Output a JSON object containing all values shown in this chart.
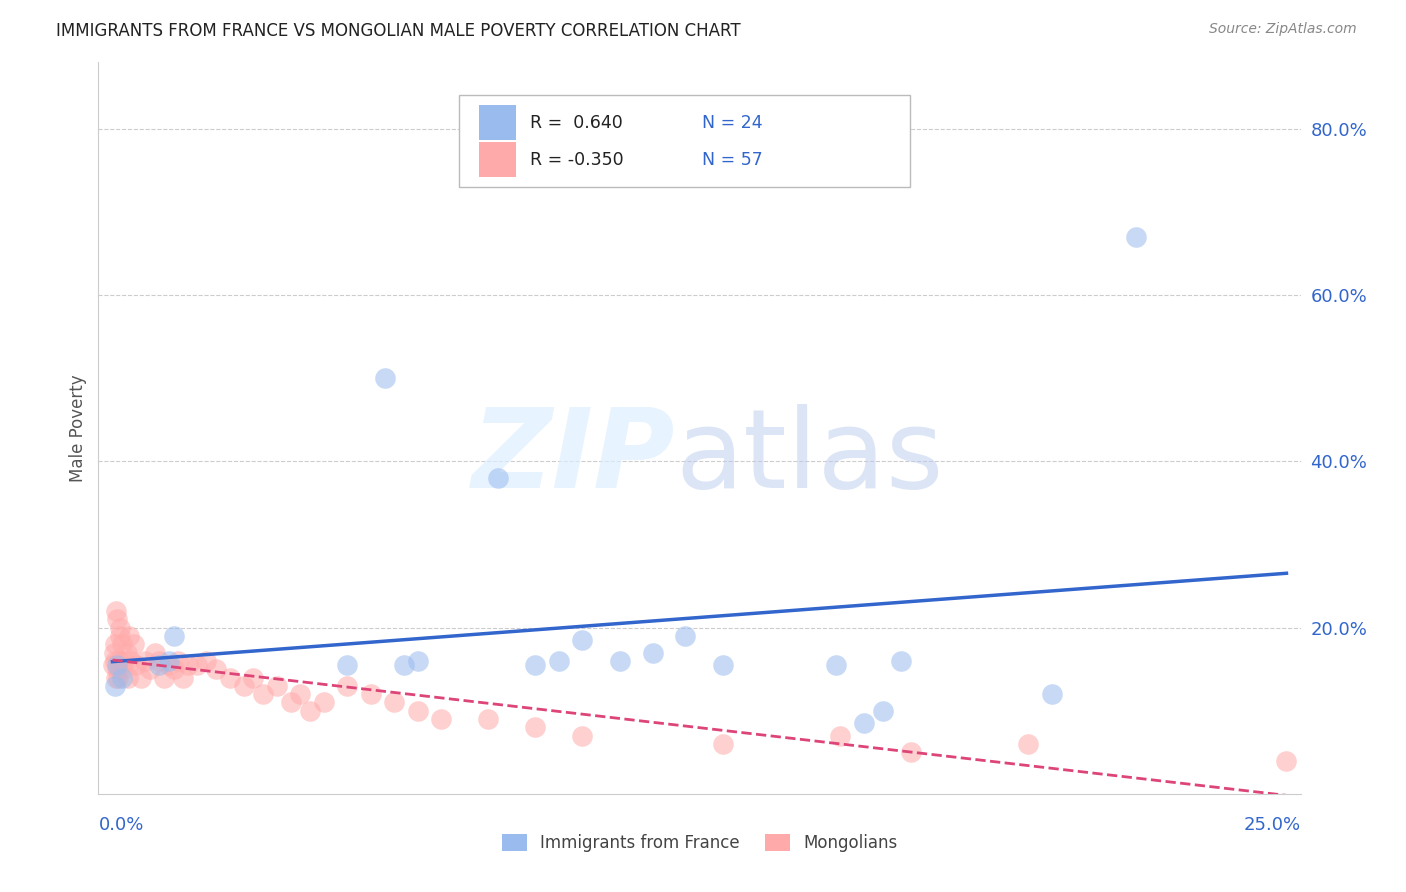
{
  "title": "IMMIGRANTS FROM FRANCE VS MONGOLIAN MALE POVERTY CORRELATION CHART",
  "source": "Source: ZipAtlas.com",
  "ylabel": "Male Poverty",
  "ytick_vals": [
    0.2,
    0.4,
    0.6,
    0.8
  ],
  "ytick_labels": [
    "20.0%",
    "40.0%",
    "60.0%",
    "80.0%"
  ],
  "xlim": [
    0.0,
    0.25
  ],
  "ylim": [
    0.0,
    0.88
  ],
  "blue_color": "#99BBEE",
  "pink_color": "#FFAAAA",
  "blue_line_color": "#3366CC",
  "pink_line_color": "#DD4477",
  "background_color": "#FFFFFF",
  "grid_color": "#CCCCCC",
  "france_x": [
    0.0005,
    0.001,
    0.002,
    0.01,
    0.012,
    0.013,
    0.05,
    0.058,
    0.062,
    0.065,
    0.082,
    0.09,
    0.095,
    0.1,
    0.108,
    0.115,
    0.122,
    0.13,
    0.154,
    0.16,
    0.164,
    0.168,
    0.2,
    0.218
  ],
  "france_y": [
    0.13,
    0.155,
    0.14,
    0.155,
    0.16,
    0.19,
    0.155,
    0.5,
    0.155,
    0.16,
    0.38,
    0.155,
    0.16,
    0.185,
    0.16,
    0.17,
    0.19,
    0.155,
    0.155,
    0.085,
    0.1,
    0.16,
    0.12,
    0.67
  ],
  "mongolia_x": [
    0.0002,
    0.0003,
    0.0005,
    0.0006,
    0.0007,
    0.0008,
    0.0009,
    0.001,
    0.0012,
    0.0013,
    0.0015,
    0.0017,
    0.002,
    0.0022,
    0.0025,
    0.003,
    0.0033,
    0.0035,
    0.004,
    0.0045,
    0.005,
    0.006,
    0.007,
    0.008,
    0.009,
    0.01,
    0.011,
    0.012,
    0.013,
    0.014,
    0.015,
    0.016,
    0.018,
    0.02,
    0.022,
    0.025,
    0.028,
    0.03,
    0.032,
    0.035,
    0.038,
    0.04,
    0.042,
    0.045,
    0.05,
    0.055,
    0.06,
    0.065,
    0.07,
    0.08,
    0.09,
    0.1,
    0.13,
    0.155,
    0.17,
    0.195,
    0.25
  ],
  "mongolia_y": [
    0.155,
    0.17,
    0.18,
    0.16,
    0.14,
    0.22,
    0.15,
    0.21,
    0.14,
    0.16,
    0.2,
    0.19,
    0.18,
    0.15,
    0.16,
    0.17,
    0.14,
    0.19,
    0.16,
    0.18,
    0.155,
    0.14,
    0.16,
    0.15,
    0.17,
    0.16,
    0.14,
    0.155,
    0.15,
    0.16,
    0.14,
    0.155,
    0.155,
    0.16,
    0.15,
    0.14,
    0.13,
    0.14,
    0.12,
    0.13,
    0.11,
    0.12,
    0.1,
    0.11,
    0.13,
    0.12,
    0.11,
    0.1,
    0.09,
    0.09,
    0.08,
    0.07,
    0.06,
    0.07,
    0.05,
    0.06,
    0.04
  ],
  "legend_r1": "R =  0.640",
  "legend_n1": "N = 24",
  "legend_r2": "R = -0.350",
  "legend_n2": "N = 57"
}
